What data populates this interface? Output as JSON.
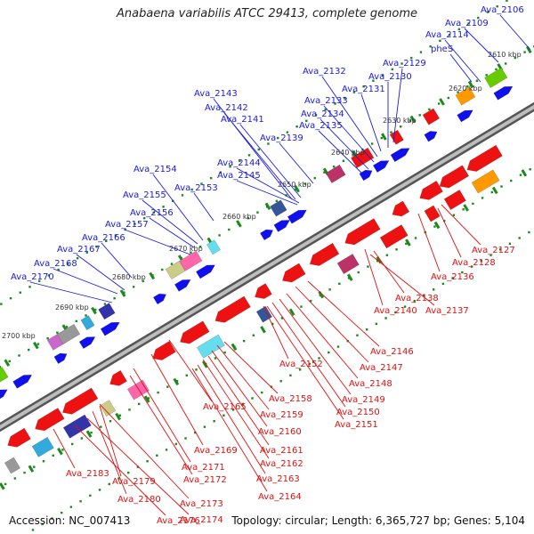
{
  "title": "Anabaena variabilis ATCC 29413, complete genome",
  "accession": "Accession: NC_007413",
  "topology": "Topology: circular; Length: 6,365,727 bp; Genes: 5,104",
  "kbp_ticks": [
    "2610 kbp",
    "2620 kbp",
    "2630 kbp",
    "2640 kbp",
    "2650 kbp",
    "2660 kbp",
    "2670 kbp",
    "2680 kbp",
    "2690 kbp",
    "2700 kbp"
  ],
  "top_labels": [
    "Ava_2106",
    "Ava_2109",
    "Ava_2114",
    "pheS",
    "Ava_2129",
    "Ava_2130",
    "Ava_2131",
    "Ava_2132",
    "Ava_2133",
    "Ava_2134",
    "Ava_2135",
    "Ava_2139",
    "Ava_2141",
    "Ava_2142",
    "Ava_2143",
    "Ava_2144",
    "Ava_2145",
    "Ava_2153",
    "Ava_2154",
    "Ava_2155",
    "Ava_2156",
    "Ava_2157",
    "Ava_2166",
    "Ava_2167",
    "Ava_2168",
    "Ava_2170"
  ],
  "bottom_labels": [
    "Ava_2127",
    "Ava_2128",
    "Ava_2136",
    "Ava_2137",
    "Ava_2138",
    "Ava_2140",
    "Ava_2146",
    "Ava_2147",
    "Ava_2148",
    "Ava_2149",
    "Ava_2150",
    "Ava_2151",
    "Ava_2152",
    "Ava_2158",
    "Ava_2159",
    "Ava_2160",
    "Ava_2161",
    "Ava_2162",
    "Ava_2163",
    "Ava_2164",
    "Ava_2165",
    "Ava_2169",
    "Ava_2171",
    "Ava_2172",
    "Ava_2173",
    "Ava_2174",
    "Ava_2176",
    "Ava_2179",
    "Ava_2180",
    "Ava_2183"
  ],
  "colors": {
    "top_label": "#1a1adb",
    "bottom_label": "#dd1111",
    "forward": "#1010ee",
    "reverse": "#ee1111",
    "backbone": "#8a8a8a",
    "tick": "#1a8a1a"
  }
}
